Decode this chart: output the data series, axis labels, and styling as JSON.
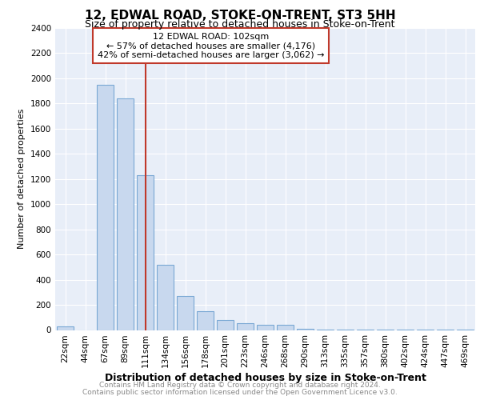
{
  "title": "12, EDWAL ROAD, STOKE-ON-TRENT, ST3 5HH",
  "subtitle": "Size of property relative to detached houses in Stoke-on-Trent",
  "xlabel": "Distribution of detached houses by size in Stoke-on-Trent",
  "ylabel": "Number of detached properties",
  "categories": [
    "22sqm",
    "44sqm",
    "67sqm",
    "89sqm",
    "111sqm",
    "134sqm",
    "156sqm",
    "178sqm",
    "201sqm",
    "223sqm",
    "246sqm",
    "268sqm",
    "290sqm",
    "313sqm",
    "335sqm",
    "357sqm",
    "380sqm",
    "402sqm",
    "424sqm",
    "447sqm",
    "469sqm"
  ],
  "values": [
    30,
    0,
    1950,
    1840,
    1230,
    520,
    270,
    150,
    80,
    55,
    40,
    40,
    10,
    5,
    5,
    3,
    3,
    2,
    2,
    2,
    2
  ],
  "bar_facecolor": "#c8d8ee",
  "bar_edgecolor": "#7aa8d4",
  "vline_color": "#c0392b",
  "vline_pos": 4.0,
  "ann_title": "12 EDWAL ROAD: 102sqm",
  "ann_line1": "← 57% of detached houses are smaller (4,176)",
  "ann_line2": "42% of semi-detached houses are larger (3,062) →",
  "ann_box_edgecolor": "#c0392b",
  "ylim": [
    0,
    2400
  ],
  "ytick_step": 200,
  "plot_bg": "#e8eef8",
  "fig_bg": "#ffffff",
  "footer1": "Contains HM Land Registry data © Crown copyright and database right 2024.",
  "footer2": "Contains public sector information licensed under the Open Government Licence v3.0.",
  "footer_color": "#888888",
  "title_fontsize": 11,
  "subtitle_fontsize": 9,
  "xlabel_fontsize": 9,
  "ylabel_fontsize": 8,
  "tick_fontsize": 7.5,
  "ann_fontsize": 8,
  "footer_fontsize": 6.5
}
